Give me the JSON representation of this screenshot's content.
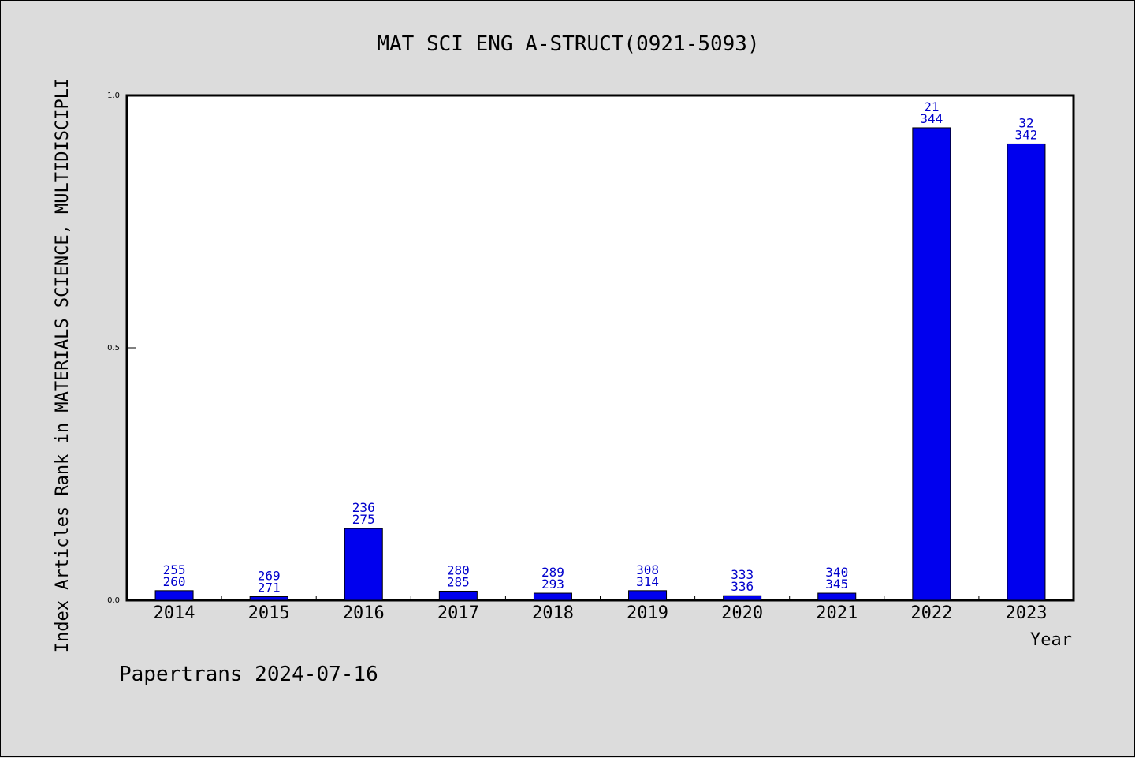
{
  "chart_data": {
    "type": "bar",
    "title": "MAT SCI ENG A-STRUCT(0921-5093)",
    "xlabel": "Year",
    "ylabel": "Index Articles Rank in MATERIALS SCIENCE, MULTIDISCIPLI",
    "ylim": [
      0,
      1.0
    ],
    "yticks": [
      "0.0",
      "0.5",
      "1.0"
    ],
    "ytick_values": [
      0.0,
      0.5,
      1.0
    ],
    "categories": [
      "2014",
      "2015",
      "2016",
      "2017",
      "2018",
      "2019",
      "2020",
      "2021",
      "2022",
      "2023"
    ],
    "values": [
      0.019,
      0.007,
      0.142,
      0.018,
      0.014,
      0.019,
      0.009,
      0.014,
      0.936,
      0.904
    ],
    "labels_top": [
      "255",
      "269",
      "236",
      "280",
      "289",
      "308",
      "333",
      "340",
      "21",
      "32"
    ],
    "labels_bottom": [
      "260",
      "271",
      "275",
      "285",
      "293",
      "314",
      "336",
      "345",
      "344",
      "342"
    ],
    "bar_color": "#0000ee",
    "label_color": "#0000cc",
    "grid": false
  },
  "footer": {
    "text": "Papertrans 2024-07-16"
  }
}
